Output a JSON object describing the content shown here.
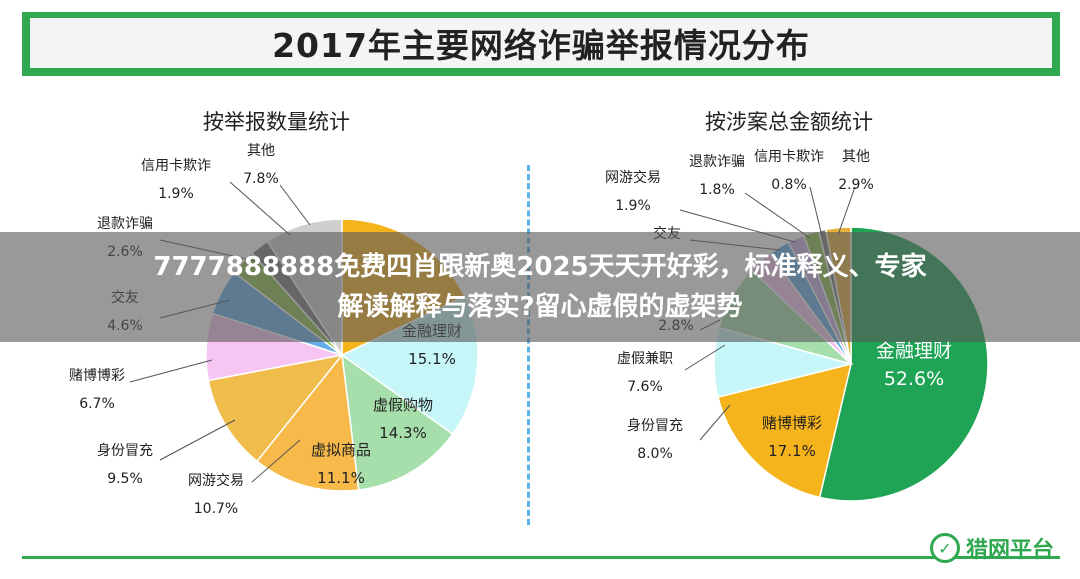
{
  "main_title": "2017年主要网络诈骗举报情况分布",
  "overlay": {
    "line1": "7777888888免费四肖跟新奥2025天天开好彩，标准释义、专家",
    "line2": "解读解释与落实?留心虚假的虚架势"
  },
  "logo_text": "猎网平台",
  "logo_mark": "✓",
  "chart_data": [
    {
      "type": "pie",
      "title": "按举报数量统计",
      "slices": [
        {
          "name": "金融理财",
          "value": 15.1,
          "label": "15.1%",
          "color": "#f6b41c"
        },
        {
          "name": "虚假购物",
          "value": 14.3,
          "label": "14.3%",
          "color": "#c6f6f8"
        },
        {
          "name": "虚拟商品",
          "value": 11.1,
          "label": "11.1%",
          "color": "#a7dfac"
        },
        {
          "name": "网游交易",
          "value": 10.7,
          "label": "10.7%",
          "color": "#f6b94a"
        },
        {
          "name": "身份冒充",
          "value": 9.5,
          "label": "9.5%",
          "color": "#f0bc4c"
        },
        {
          "name": "赌博博彩",
          "value": 6.7,
          "label": "6.7%",
          "color": "#f7c5f2"
        },
        {
          "name": "交友",
          "value": 4.6,
          "label": "4.6%",
          "color": "#64aee8"
        },
        {
          "name": "退款诈骗",
          "value": 2.6,
          "label": "2.6%",
          "color": "#8cc04d"
        },
        {
          "name": "信用卡欺诈",
          "value": 1.9,
          "label": "1.9%",
          "color": "#7a7a7a"
        },
        {
          "name": "其他",
          "value": 7.8,
          "label": "7.8%",
          "color": "#cfcfcf"
        }
      ],
      "visible_remainder_color": "#1c9a4e"
    },
    {
      "type": "pie",
      "title": "按涉案总金额统计",
      "slices": [
        {
          "name": "金融理财",
          "value": 52.6,
          "label": "52.6%",
          "color": "#1fa455"
        },
        {
          "name": "赌博博彩",
          "value": 17.1,
          "label": "17.1%",
          "color": "#f6b41c"
        },
        {
          "name": "身份冒充",
          "value": 8.0,
          "label": "8.0%",
          "color": "#c6f6f8"
        },
        {
          "name": "虚假兼职",
          "value": 7.6,
          "label": "7.6%",
          "color": "#a7dfac"
        },
        {
          "name": "",
          "value": 2.8,
          "label": "2.8%",
          "color": "#f7c5f2"
        },
        {
          "name": "交友",
          "value": 2.5,
          "label": "",
          "color": "#64aee8"
        },
        {
          "name": "网游交易",
          "value": 1.9,
          "label": "1.9%",
          "color": "#c9b1e8"
        },
        {
          "name": "退款诈骗",
          "value": 1.8,
          "label": "1.8%",
          "color": "#8cc04d"
        },
        {
          "name": "信用卡欺诈",
          "value": 0.8,
          "label": "0.8%",
          "color": "#7a7a7a"
        },
        {
          "name": "其他",
          "value": 2.9,
          "label": "2.9%",
          "color": "#e4b13a"
        }
      ]
    }
  ]
}
